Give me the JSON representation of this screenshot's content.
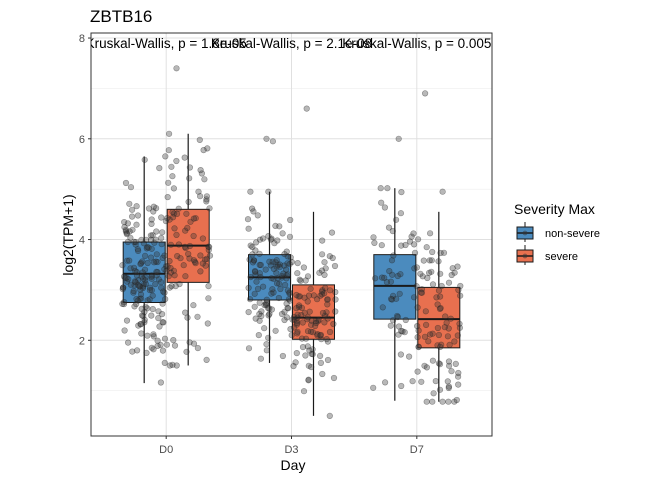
{
  "chart_data": {
    "type": "box",
    "title": "ZBTB16",
    "xlabel": "Day",
    "ylabel": "log2(TPM+1)",
    "categories": [
      "D0",
      "D3",
      "D7"
    ],
    "ylim": [
      0.1,
      8.1
    ],
    "yticks": [
      2,
      4,
      6,
      8
    ],
    "grid": true,
    "legend": {
      "title": "Severity Max",
      "placement": "right",
      "entries": [
        "non-severe",
        "severe"
      ]
    },
    "colors": {
      "non-severe": "#4b8bbe",
      "severe": "#e8704f"
    },
    "annotations": [
      {
        "category": "D0",
        "text": "Kruskal-Wallis, p = 1.8e-05"
      },
      {
        "category": "D3",
        "text": "Kruskal-Wallis, p = 2.1e-08"
      },
      {
        "category": "D7",
        "text": "Kruskal-Wallis, p = 0.005"
      }
    ],
    "series": [
      {
        "name": "non-severe",
        "boxes": [
          {
            "category": "D0",
            "whisker_low": 1.15,
            "q1": 2.75,
            "median": 3.32,
            "q3": 3.95,
            "whisker_high": 5.65,
            "outliers": []
          },
          {
            "category": "D3",
            "whisker_low": 1.55,
            "q1": 2.8,
            "median": 3.25,
            "q3": 3.7,
            "whisker_high": 4.95,
            "outliers": [
              5.95,
              6.0
            ]
          },
          {
            "category": "D7",
            "whisker_low": 0.8,
            "q1": 2.42,
            "median": 3.08,
            "q3": 3.7,
            "whisker_high": 5.02,
            "outliers": [
              6.0
            ]
          }
        ]
      },
      {
        "name": "severe",
        "boxes": [
          {
            "category": "D0",
            "whisker_low": 1.5,
            "q1": 3.15,
            "median": 3.88,
            "q3": 4.6,
            "whisker_high": 6.1,
            "outliers": [
              7.4
            ]
          },
          {
            "category": "D3",
            "whisker_low": 0.5,
            "q1": 2.02,
            "median": 2.45,
            "q3": 3.1,
            "whisker_high": 4.55,
            "outliers": [
              6.6
            ]
          },
          {
            "category": "D7",
            "whisker_low": 0.78,
            "q1": 1.85,
            "median": 2.42,
            "q3": 3.05,
            "whisker_high": 4.55,
            "outliers": [
              4.95,
              6.9
            ]
          }
        ]
      }
    ]
  }
}
